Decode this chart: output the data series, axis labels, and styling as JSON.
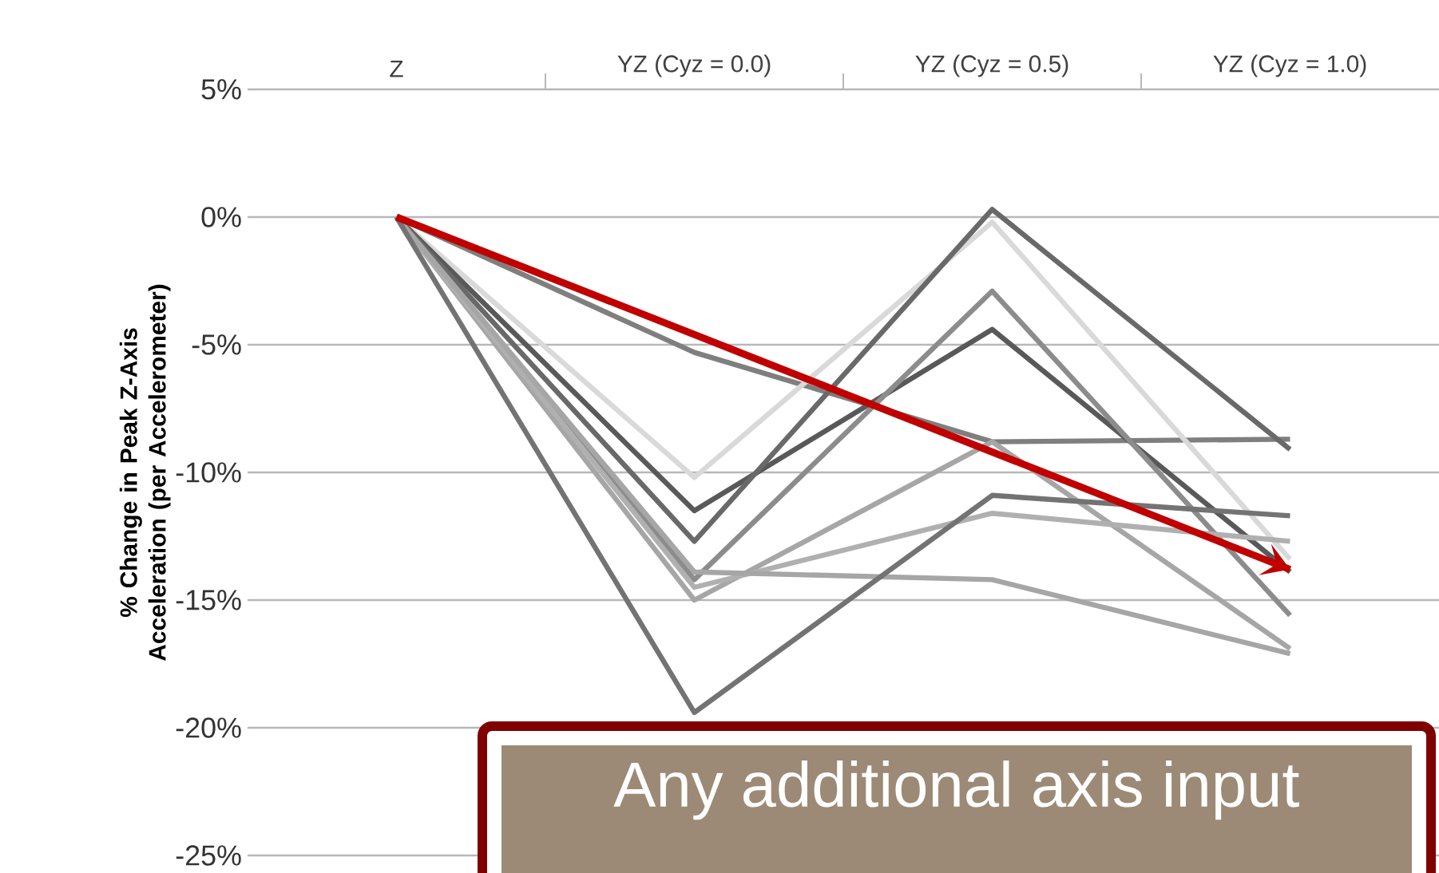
{
  "chart_data": {
    "type": "line",
    "ylabel": "% Change in Peak Z-Axis Acceleration (per Accelerometer)",
    "categories": [
      "Z",
      "YZ (Cyz = 0.0)",
      "YZ (Cyz = 0.5)",
      "YZ (Cyz = 1.0)"
    ],
    "series": [
      {
        "color": "#7f7f7f",
        "values": [
          0,
          -5.3,
          -8.8,
          -8.7
        ]
      },
      {
        "color": "#d9d9d9",
        "values": [
          0,
          -10.2,
          -0.2,
          -13.4
        ]
      },
      {
        "color": "#595959",
        "values": [
          0,
          -11.5,
          -4.4,
          -13.9
        ]
      },
      {
        "color": "#696969",
        "values": [
          0,
          -12.7,
          0.3,
          -9.1
        ]
      },
      {
        "color": "#8c8c8c",
        "values": [
          0,
          -14.2,
          -2.9,
          -15.6
        ]
      },
      {
        "color": "#a6a6a6",
        "values": [
          0,
          -15.0,
          -8.8,
          -16.9
        ]
      },
      {
        "color": "#b0b0b0",
        "values": [
          0,
          -14.5,
          -11.6,
          -12.7
        ]
      },
      {
        "color": "#a6a6a6",
        "values": [
          0,
          -13.9,
          -14.2,
          -17.1
        ]
      },
      {
        "color": "#737373",
        "values": [
          0,
          -19.4,
          -10.9,
          -11.7
        ]
      },
      {
        "type": "line",
        "color": "#c00000",
        "values": [
          0,
          null,
          null,
          -13.8
        ]
      }
    ],
    "ylim": [
      -25,
      5
    ],
    "yticks": [
      {
        "value": -25,
        "label": "-25%"
      },
      {
        "value": -20,
        "label": "-20%"
      },
      {
        "value": -15,
        "label": "-15%"
      },
      {
        "value": -10,
        "label": "-10%"
      },
      {
        "value": -5,
        "label": "-5%"
      },
      {
        "value": 0,
        "label": "0%"
      },
      {
        "value": 5,
        "label": "5%"
      }
    ],
    "grid": "y",
    "marker": "none",
    "line_style": "solid",
    "annotations": [
      "Any additional axis input"
    ]
  }
}
